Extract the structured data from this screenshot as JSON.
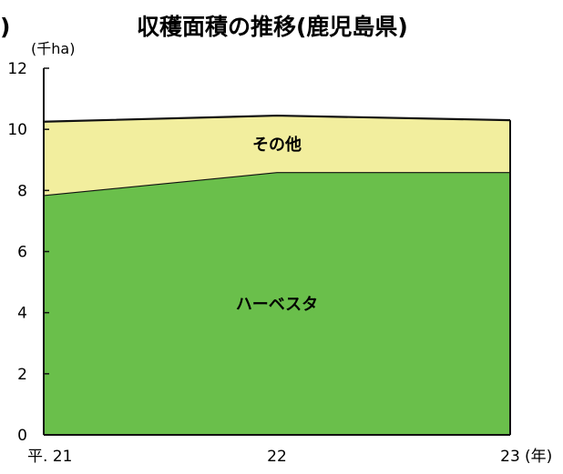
{
  "chart_data": {
    "type": "area",
    "stacked": true,
    "title": "収穫面積の推移(鹿児島県)",
    "title_prefix_fragment": ")",
    "ylabel": "(千ha)",
    "xlabel": "",
    "x_categories": [
      "平. 21",
      "22",
      "23"
    ],
    "x_unit": "(年)",
    "ylim": [
      0,
      12
    ],
    "y_ticks": [
      0,
      2,
      4,
      6,
      8,
      10,
      12
    ],
    "grid": false,
    "series": [
      {
        "name": "ハーベスタ",
        "values": [
          7.85,
          8.6,
          8.6
        ],
        "color": "#6abf4b"
      },
      {
        "name": "その他",
        "values": [
          2.4,
          1.85,
          1.7
        ],
        "color": "#f2ee9e"
      }
    ]
  }
}
